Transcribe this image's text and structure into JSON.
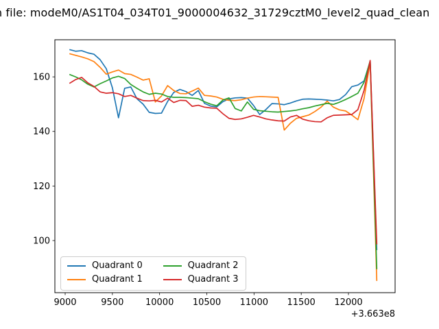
{
  "title": "n file: modeM0/AS1T04_034T01_9000004632_31729cztM0_level2_quad_clean",
  "chart_data": {
    "type": "line",
    "title": "n file: modeM0/AS1T04_034T01_9000004632_31729cztM0_level2_quad_clean",
    "xlabel": "",
    "ylabel": "",
    "x_offset_label": "+3.663e8",
    "xlim": [
      8891,
      12494
    ],
    "ylim": [
      80.9,
      173.6
    ],
    "xticks": [
      9000,
      9500,
      10000,
      10500,
      11000,
      11500,
      12000
    ],
    "yticks": [
      100,
      120,
      140,
      160
    ],
    "grid": false,
    "legend": {
      "position": "lower-left",
      "columns": 2
    },
    "x": [
      9045,
      9110,
      9175,
      9240,
      9305,
      9370,
      9435,
      9500,
      9565,
      9630,
      9695,
      9760,
      9825,
      9890,
      9955,
      10020,
      10085,
      10150,
      10215,
      10280,
      10345,
      10410,
      10475,
      10540,
      10605,
      10670,
      10735,
      10800,
      10865,
      10930,
      10995,
      11060,
      11125,
      11190,
      11255,
      11320,
      11385,
      11450,
      11515,
      11580,
      11645,
      11710,
      11775,
      11840,
      11905,
      11970,
      12035,
      12100,
      12165,
      12230,
      12300
    ],
    "series": [
      {
        "name": "Quadrant 0",
        "color": "#1f77b4",
        "values": [
          170.0,
          169.4,
          169.6,
          168.8,
          168.3,
          166.3,
          163.0,
          156.0,
          145.0,
          155.8,
          156.3,
          152.0,
          150.0,
          147.0,
          146.6,
          146.7,
          151.0,
          154.3,
          155.4,
          154.6,
          153.2,
          155.0,
          150.3,
          149.3,
          149.0,
          150.9,
          151.9,
          152.3,
          152.4,
          152.2,
          149.5,
          146.2,
          148.0,
          150.2,
          150.1,
          149.8,
          150.4,
          151.2,
          151.8,
          151.9,
          151.8,
          151.7,
          151.5,
          151.2,
          151.7,
          153.5,
          156.4,
          157.0,
          158.5,
          165.7,
          96.5
        ]
      },
      {
        "name": "Quadrant 1",
        "color": "#ff7f0e",
        "values": [
          168.5,
          167.9,
          167.3,
          166.6,
          165.6,
          163.5,
          161.0,
          161.8,
          162.5,
          161.2,
          160.9,
          159.9,
          158.8,
          159.3,
          150.8,
          153.0,
          156.8,
          155.0,
          153.9,
          153.8,
          154.8,
          155.9,
          153.2,
          153.0,
          152.6,
          151.8,
          151.4,
          151.3,
          151.6,
          152.2,
          152.6,
          152.8,
          152.7,
          152.6,
          152.5,
          140.5,
          143.0,
          144.8,
          145.4,
          146.0,
          147.3,
          148.9,
          151.1,
          148.9,
          147.9,
          147.5,
          146.0,
          144.3,
          152.0,
          165.3,
          85.2
        ]
      },
      {
        "name": "Quadrant 2",
        "color": "#2ca02c",
        "values": [
          160.9,
          160.0,
          158.9,
          157.3,
          156.3,
          157.5,
          158.5,
          159.6,
          160.2,
          159.4,
          157.2,
          155.8,
          154.5,
          153.6,
          154.0,
          153.7,
          152.8,
          152.5,
          152.5,
          152.4,
          152.2,
          152.0,
          150.9,
          150.0,
          149.4,
          151.5,
          152.3,
          148.4,
          147.5,
          150.8,
          148.1,
          147.6,
          147.4,
          147.2,
          147.1,
          147.3,
          147.5,
          147.8,
          148.3,
          148.7,
          149.3,
          149.8,
          150.3,
          149.9,
          150.7,
          151.7,
          152.8,
          154.0,
          158.0,
          165.9,
          89.5
        ]
      },
      {
        "name": "Quadrant 3",
        "color": "#d62728",
        "values": [
          157.6,
          159.0,
          159.8,
          157.8,
          156.5,
          154.5,
          154.0,
          154.2,
          153.8,
          152.8,
          153.2,
          152.2,
          151.3,
          151.2,
          151.4,
          150.8,
          152.2,
          150.6,
          151.4,
          151.3,
          149.2,
          149.6,
          148.9,
          148.6,
          148.5,
          146.5,
          144.8,
          144.4,
          144.6,
          145.2,
          145.9,
          145.3,
          144.6,
          144.2,
          143.9,
          143.8,
          145.3,
          145.9,
          144.5,
          143.9,
          143.6,
          143.5,
          145.0,
          145.9,
          146.0,
          146.1,
          146.2,
          148.0,
          155.0,
          166.0,
          98.6
        ]
      }
    ]
  }
}
